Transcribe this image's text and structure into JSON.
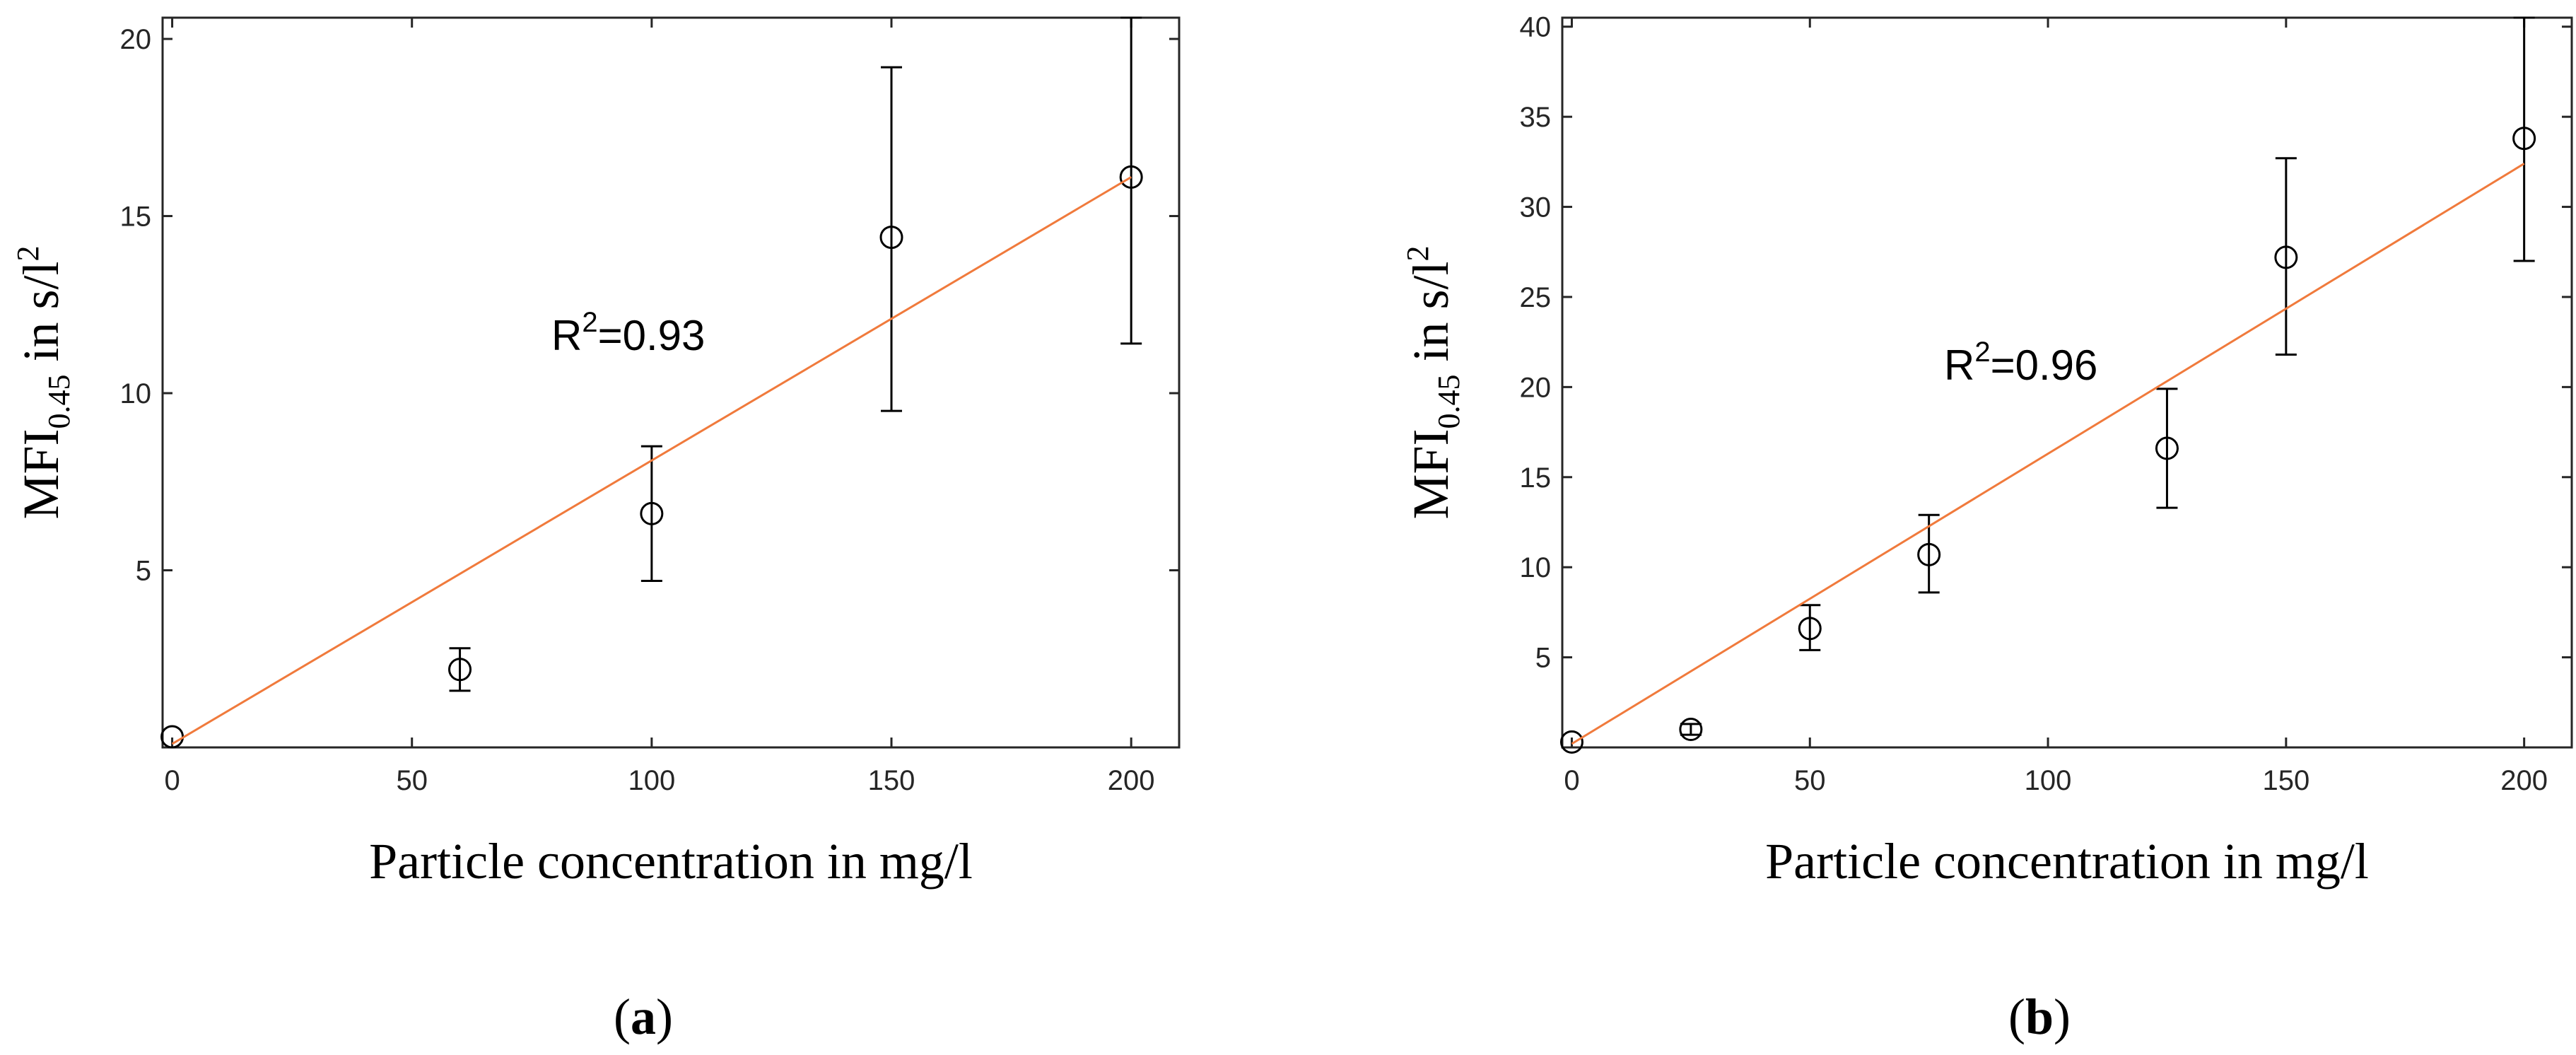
{
  "chart_data": [
    {
      "type": "scatter",
      "panel_label": "(a)",
      "panel_letter": "a",
      "xlabel": "Particle concentration in mg/l",
      "ylabel_main": "MFI",
      "ylabel_sub": "0.45",
      "ylabel_unit": " in s/l",
      "ylabel_sup": "2",
      "xlim": [
        -2,
        210
      ],
      "ylim": [
        0,
        20.6
      ],
      "xticks": [
        0,
        50,
        100,
        150,
        200
      ],
      "yticks": [
        5,
        10,
        15,
        20
      ],
      "points": [
        {
          "x": 0,
          "y": 0.3,
          "err_low": 0.3,
          "err_high": 0.3
        },
        {
          "x": 60,
          "y": 2.2,
          "err_low": 1.6,
          "err_high": 2.8
        },
        {
          "x": 100,
          "y": 6.6,
          "err_low": 4.7,
          "err_high": 8.5
        },
        {
          "x": 150,
          "y": 14.4,
          "err_low": 9.5,
          "err_high": 19.2
        },
        {
          "x": 200,
          "y": 16.1,
          "err_low": 11.4,
          "err_high": 20.6
        }
      ],
      "fit_line": {
        "x": [
          0,
          200
        ],
        "y": [
          0.1,
          16.1
        ]
      },
      "r2_label": "R",
      "r2_sup": "2",
      "r2_value": "=0.93",
      "fit_color": "#f07a3c"
    },
    {
      "type": "scatter",
      "panel_label": "(b)",
      "panel_letter": "b",
      "xlabel": "Particle concentration in mg/l",
      "ylabel_main": "MFI",
      "ylabel_sub": "0.45",
      "ylabel_unit": " in s/l",
      "ylabel_sup": "2",
      "xlim": [
        -2,
        210
      ],
      "ylim": [
        0,
        40.5
      ],
      "xticks": [
        0,
        50,
        100,
        150,
        200
      ],
      "yticks": [
        5,
        10,
        15,
        20,
        25,
        30,
        35,
        40
      ],
      "points": [
        {
          "x": 0,
          "y": 0.3,
          "err_low": 0.3,
          "err_high": 0.3
        },
        {
          "x": 25,
          "y": 1.0,
          "err_low": 0.7,
          "err_high": 1.3
        },
        {
          "x": 50,
          "y": 6.6,
          "err_low": 5.4,
          "err_high": 7.9
        },
        {
          "x": 75,
          "y": 10.7,
          "err_low": 8.6,
          "err_high": 12.9
        },
        {
          "x": 125,
          "y": 16.6,
          "err_low": 13.3,
          "err_high": 19.9
        },
        {
          "x": 150,
          "y": 27.2,
          "err_low": 21.8,
          "err_high": 32.7
        },
        {
          "x": 200,
          "y": 33.8,
          "err_low": 27.0,
          "err_high": 40.5
        }
      ],
      "fit_line": {
        "x": [
          0,
          200
        ],
        "y": [
          0.2,
          32.4
        ]
      },
      "r2_label": "R",
      "r2_sup": "2",
      "r2_value": "=0.96",
      "fit_color": "#f07a3c"
    }
  ]
}
